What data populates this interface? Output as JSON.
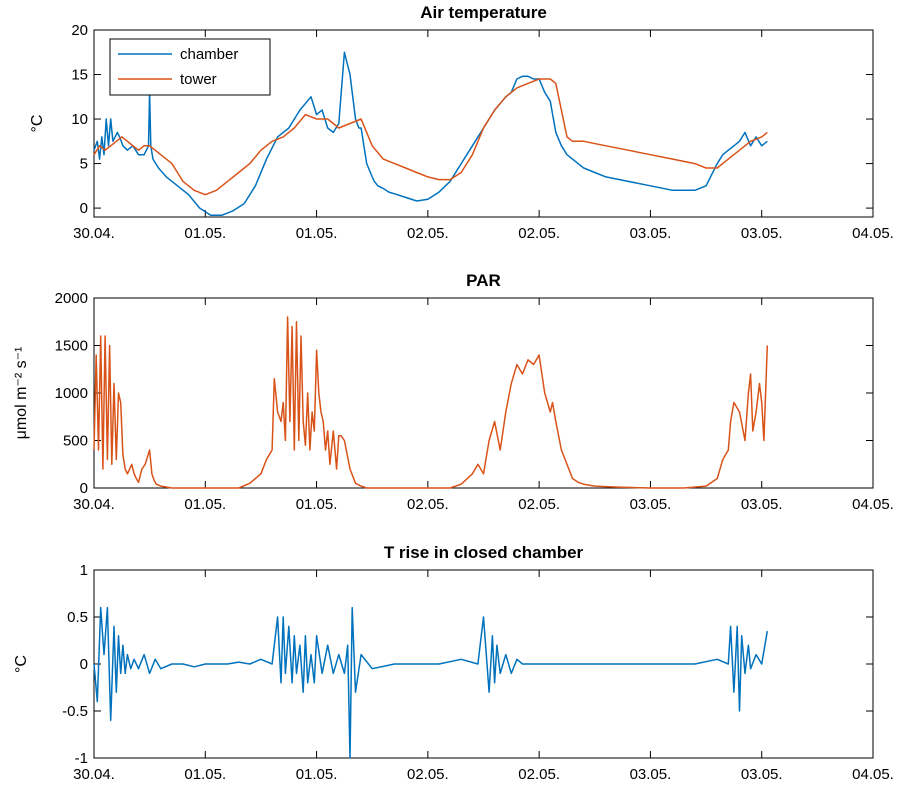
{
  "colors": {
    "chamber": "#0072bd",
    "tower": "#d95319",
    "axis": "#000000",
    "background": "#ffffff"
  },
  "chart_data": [
    {
      "type": "line",
      "title": "Air temperature",
      "ylabel": "°C",
      "xlabel": "",
      "xlim": [
        0,
        7
      ],
      "xticks": [
        0,
        1,
        2,
        3,
        4,
        5,
        6,
        7
      ],
      "xticklabels": [
        "30.04.",
        "01.05.",
        "01.05.",
        "02.05.",
        "02.05.",
        "03.05.",
        "03.05.",
        "04.05."
      ],
      "ylim": [
        -1,
        20
      ],
      "yticks": [
        0,
        5,
        10,
        15,
        20
      ],
      "yticklabels": [
        "0",
        "5",
        "10",
        "15",
        "20"
      ],
      "legend": {
        "position": "top-left"
      },
      "series": [
        {
          "name": "chamber",
          "color": "#0072bd",
          "x": [
            0,
            0.03,
            0.05,
            0.07,
            0.09,
            0.11,
            0.13,
            0.15,
            0.17,
            0.19,
            0.21,
            0.23,
            0.26,
            0.3,
            0.35,
            0.4,
            0.45,
            0.49,
            0.5,
            0.51,
            0.53,
            0.58,
            0.65,
            0.75,
            0.85,
            0.95,
            1.05,
            1.15,
            1.25,
            1.35,
            1.45,
            1.55,
            1.65,
            1.75,
            1.85,
            1.95,
            2.0,
            2.05,
            2.1,
            2.15,
            2.2,
            2.25,
            2.3,
            2.35,
            2.38,
            2.4,
            2.45,
            2.5,
            2.52,
            2.55,
            2.6,
            2.65,
            2.7,
            2.8,
            2.9,
            3.0,
            3.1,
            3.2,
            3.3,
            3.4,
            3.5,
            3.6,
            3.7,
            3.75,
            3.8,
            3.85,
            3.9,
            3.95,
            4.0,
            4.05,
            4.1,
            4.15,
            4.2,
            4.25,
            4.3,
            4.35,
            4.4,
            4.5,
            4.6,
            4.8,
            5.0,
            5.2,
            5.4,
            5.5,
            5.6,
            5.65,
            5.7,
            5.75,
            5.8,
            5.85,
            5.9,
            5.95,
            6.0,
            6.05
          ],
          "y": [
            6.5,
            7.5,
            5.5,
            8.0,
            6.0,
            10.0,
            7.0,
            10.0,
            7.5,
            8.0,
            8.5,
            8.0,
            7.0,
            6.5,
            7.0,
            6.0,
            6.0,
            7.0,
            13.0,
            7.0,
            5.5,
            4.5,
            3.5,
            2.5,
            1.5,
            0.0,
            -0.8,
            -0.8,
            -0.3,
            0.5,
            2.5,
            5.5,
            8.0,
            9.0,
            11.0,
            12.5,
            10.5,
            11.0,
            9.0,
            8.5,
            9.5,
            17.5,
            15.0,
            10.0,
            9.0,
            9.0,
            5.0,
            3.5,
            3.0,
            2.5,
            2.2,
            1.8,
            1.6,
            1.2,
            0.8,
            1.0,
            1.8,
            3.0,
            5.0,
            7.0,
            9.0,
            11.0,
            12.5,
            13.0,
            14.5,
            14.8,
            14.8,
            14.5,
            14.5,
            13.0,
            12.0,
            8.5,
            7.0,
            6.0,
            5.5,
            5.0,
            4.5,
            4.0,
            3.5,
            3.0,
            2.5,
            2.0,
            2.0,
            2.5,
            5.0,
            6.0,
            6.5,
            7.0,
            7.5,
            8.5,
            7.0,
            8.0,
            7.0,
            7.5
          ]
        },
        {
          "name": "tower",
          "color": "#d95319",
          "x": [
            0,
            0.05,
            0.1,
            0.15,
            0.2,
            0.25,
            0.3,
            0.35,
            0.4,
            0.45,
            0.5,
            0.6,
            0.7,
            0.8,
            0.9,
            1.0,
            1.1,
            1.2,
            1.3,
            1.4,
            1.5,
            1.6,
            1.7,
            1.8,
            1.9,
            2.0,
            2.1,
            2.2,
            2.3,
            2.4,
            2.5,
            2.6,
            2.7,
            2.8,
            2.9,
            3.0,
            3.1,
            3.2,
            3.3,
            3.4,
            3.5,
            3.6,
            3.7,
            3.8,
            3.9,
            4.0,
            4.1,
            4.15,
            4.2,
            4.25,
            4.3,
            4.4,
            4.6,
            4.8,
            5.0,
            5.2,
            5.4,
            5.5,
            5.6,
            5.7,
            5.8,
            5.9,
            6.0,
            6.05
          ],
          "y": [
            6.0,
            7.0,
            6.5,
            7.0,
            7.5,
            8.0,
            7.5,
            7.0,
            6.5,
            7.0,
            7.0,
            6.0,
            5.0,
            3.0,
            2.0,
            1.5,
            2.0,
            3.0,
            4.0,
            5.0,
            6.5,
            7.5,
            8.0,
            9.0,
            10.5,
            10.0,
            10.0,
            9.0,
            9.5,
            10.0,
            7.0,
            5.5,
            5.0,
            4.5,
            4.0,
            3.5,
            3.2,
            3.2,
            4.0,
            6.0,
            9.0,
            11.0,
            12.5,
            13.5,
            14.0,
            14.5,
            14.5,
            14.0,
            11.0,
            8.0,
            7.5,
            7.5,
            7.0,
            6.5,
            6.0,
            5.5,
            5.0,
            4.5,
            4.5,
            5.5,
            6.5,
            7.5,
            8.0,
            8.5
          ]
        }
      ]
    },
    {
      "type": "line",
      "title": "PAR",
      "ylabel": "μmol m⁻² s⁻¹",
      "xlabel": "",
      "xlim": [
        0,
        7
      ],
      "xticks": [
        0,
        1,
        2,
        3,
        4,
        5,
        6,
        7
      ],
      "xticklabels": [
        "30.04.",
        "01.05.",
        "01.05.",
        "02.05.",
        "02.05.",
        "03.05.",
        "03.05.",
        "04.05."
      ],
      "ylim": [
        0,
        2000
      ],
      "yticks": [
        0,
        500,
        1000,
        1500,
        2000
      ],
      "yticklabels": [
        "0",
        "500",
        "1000",
        "1500",
        "2000"
      ],
      "series": [
        {
          "name": "",
          "color": "#d95319",
          "x": [
            0,
            0.02,
            0.04,
            0.06,
            0.08,
            0.1,
            0.12,
            0.14,
            0.16,
            0.18,
            0.2,
            0.22,
            0.24,
            0.26,
            0.28,
            0.3,
            0.32,
            0.34,
            0.36,
            0.38,
            0.4,
            0.43,
            0.46,
            0.5,
            0.52,
            0.54,
            0.56,
            0.6,
            0.7,
            0.8,
            1.0,
            1.2,
            1.3,
            1.4,
            1.5,
            1.55,
            1.6,
            1.62,
            1.65,
            1.68,
            1.7,
            1.72,
            1.74,
            1.76,
            1.78,
            1.8,
            1.82,
            1.84,
            1.86,
            1.88,
            1.9,
            1.92,
            1.94,
            1.96,
            1.98,
            2.0,
            2.02,
            2.04,
            2.06,
            2.08,
            2.1,
            2.12,
            2.15,
            2.18,
            2.2,
            2.22,
            2.25,
            2.3,
            2.35,
            2.4,
            2.45,
            2.5,
            2.55,
            2.6,
            2.7,
            3.0,
            3.2,
            3.3,
            3.4,
            3.45,
            3.5,
            3.55,
            3.6,
            3.65,
            3.7,
            3.75,
            3.8,
            3.85,
            3.9,
            3.95,
            4.0,
            4.05,
            4.1,
            4.12,
            4.15,
            4.2,
            4.25,
            4.3,
            4.35,
            4.4,
            4.5,
            4.7,
            5.0,
            5.3,
            5.5,
            5.6,
            5.65,
            5.7,
            5.72,
            5.75,
            5.8,
            5.85,
            5.88,
            5.9,
            5.92,
            5.95,
            5.98,
            6.0,
            6.02,
            6.05
          ],
          "y": [
            400,
            1400,
            400,
            1600,
            200,
            1600,
            300,
            1500,
            250,
            1100,
            300,
            1000,
            900,
            350,
            200,
            150,
            200,
            250,
            150,
            100,
            60,
            200,
            250,
            400,
            150,
            80,
            40,
            20,
            0,
            0,
            0,
            0,
            0,
            50,
            150,
            300,
            400,
            1150,
            800,
            700,
            900,
            500,
            1800,
            700,
            1700,
            400,
            1750,
            500,
            1600,
            700,
            450,
            1000,
            400,
            800,
            600,
            1450,
            1000,
            800,
            700,
            400,
            600,
            250,
            600,
            200,
            550,
            550,
            500,
            200,
            50,
            20,
            0,
            0,
            0,
            0,
            0,
            0,
            0,
            40,
            150,
            250,
            150,
            500,
            700,
            400,
            800,
            1100,
            1300,
            1200,
            1350,
            1300,
            1400,
            1000,
            800,
            900,
            700,
            400,
            250,
            100,
            60,
            40,
            20,
            10,
            0,
            0,
            20,
            100,
            300,
            400,
            700,
            900,
            800,
            500,
            1000,
            1200,
            600,
            800,
            1100,
            900,
            500,
            1500
          ]
        }
      ]
    },
    {
      "type": "line",
      "title": "T rise in closed chamber",
      "ylabel": "°C",
      "xlabel": "",
      "xlim": [
        0,
        7
      ],
      "xticks": [
        0,
        1,
        2,
        3,
        4,
        5,
        6,
        7
      ],
      "xticklabels": [
        "30.04.",
        "01.05.",
        "01.05.",
        "02.05.",
        "02.05.",
        "03.05.",
        "03.05.",
        "04.05."
      ],
      "ylim": [
        -1,
        1
      ],
      "yticks": [
        -1,
        -0.5,
        0,
        0.5,
        1
      ],
      "yticklabels": [
        "-1",
        "-0.5",
        "0",
        "0.5",
        "1"
      ],
      "series": [
        {
          "name": "",
          "color": "#0072bd",
          "x": [
            0,
            0.03,
            0.06,
            0.09,
            0.12,
            0.15,
            0.18,
            0.2,
            0.22,
            0.24,
            0.26,
            0.28,
            0.3,
            0.33,
            0.36,
            0.4,
            0.45,
            0.5,
            0.55,
            0.6,
            0.7,
            0.8,
            0.9,
            1.0,
            1.1,
            1.2,
            1.3,
            1.4,
            1.5,
            1.6,
            1.65,
            1.68,
            1.7,
            1.72,
            1.75,
            1.78,
            1.8,
            1.82,
            1.85,
            1.88,
            1.9,
            1.92,
            1.95,
            1.98,
            2.0,
            2.05,
            2.1,
            2.15,
            2.2,
            2.25,
            2.28,
            2.3,
            2.32,
            2.35,
            2.4,
            2.5,
            2.7,
            2.9,
            3.1,
            3.3,
            3.45,
            3.5,
            3.55,
            3.58,
            3.6,
            3.62,
            3.65,
            3.7,
            3.75,
            3.8,
            3.85,
            3.9,
            4.0,
            4.2,
            4.5,
            4.8,
            5.1,
            5.4,
            5.6,
            5.7,
            5.72,
            5.75,
            5.78,
            5.8,
            5.82,
            5.85,
            5.88,
            5.9,
            5.95,
            6.0,
            6.05
          ],
          "y": [
            0.0,
            -0.4,
            0.6,
            0.1,
            0.6,
            -0.6,
            0.4,
            -0.3,
            0.3,
            -0.1,
            0.2,
            -0.1,
            0.1,
            -0.05,
            0.05,
            -0.05,
            0.1,
            -0.1,
            0.05,
            -0.05,
            0.0,
            0.0,
            -0.03,
            0.0,
            0.0,
            0.0,
            0.02,
            0.0,
            0.05,
            0.0,
            0.5,
            -0.2,
            0.5,
            -0.1,
            0.4,
            -0.2,
            0.3,
            -0.1,
            0.2,
            -0.3,
            0.3,
            -0.2,
            0.1,
            -0.2,
            0.3,
            -0.1,
            0.2,
            -0.1,
            0.1,
            -0.1,
            0.2,
            -1.0,
            0.6,
            -0.3,
            0.1,
            -0.05,
            0.0,
            0.0,
            0.0,
            0.05,
            0.0,
            0.5,
            -0.3,
            0.3,
            -0.2,
            0.2,
            -0.1,
            0.1,
            -0.1,
            0.05,
            0.0,
            0.0,
            0.0,
            0.0,
            0.0,
            0.0,
            0.0,
            0.0,
            0.05,
            0.0,
            0.4,
            -0.3,
            0.4,
            -0.5,
            0.3,
            -0.1,
            0.2,
            -0.05,
            0.1,
            0.0,
            0.35
          ]
        }
      ]
    }
  ]
}
